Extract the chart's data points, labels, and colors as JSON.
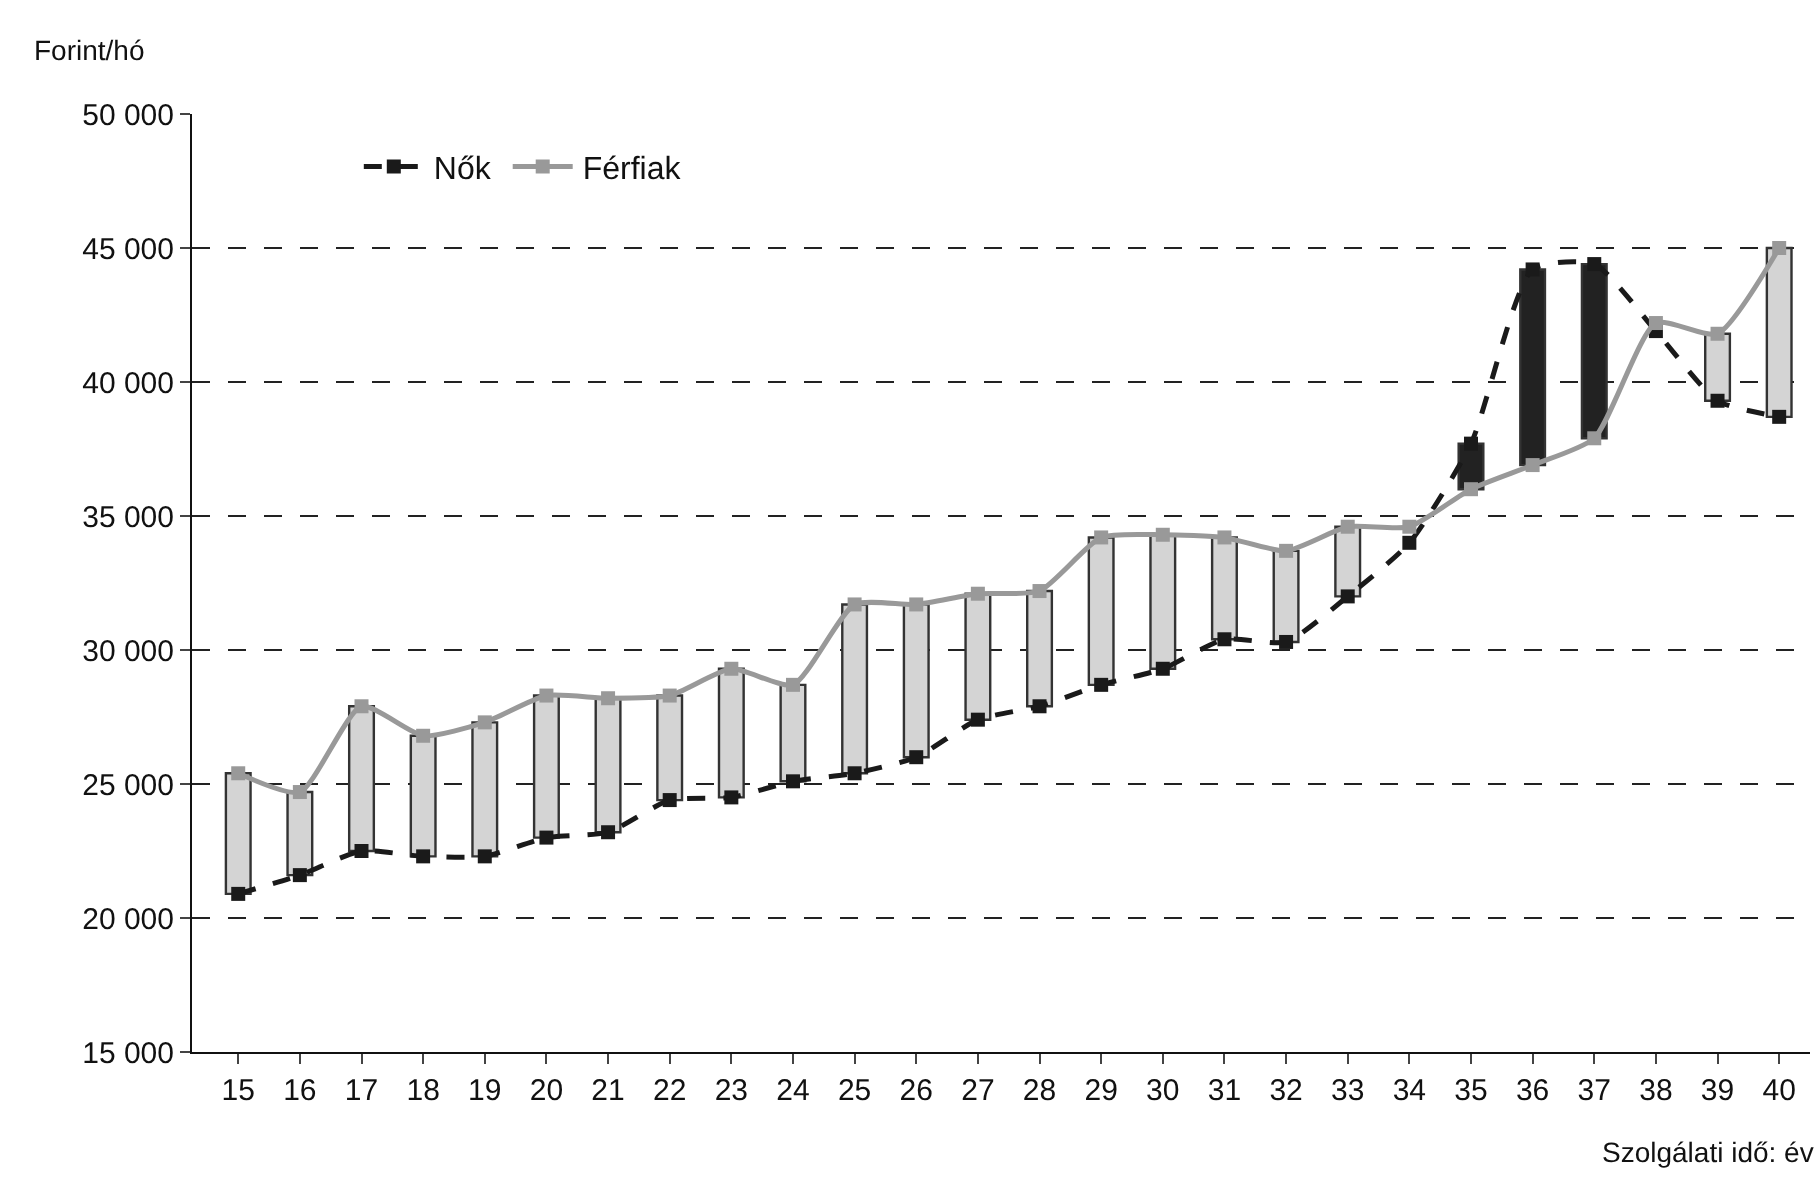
{
  "chart_data": {
    "type": "line",
    "xlabel": "Szolgálati idő: év",
    "ylabel": "Forint/hó",
    "categories": [
      "15",
      "16",
      "17",
      "18",
      "19",
      "20",
      "21",
      "22",
      "23",
      "24",
      "25",
      "26",
      "27",
      "28",
      "29",
      "30",
      "31",
      "32",
      "33",
      "34",
      "35",
      "36",
      "37",
      "38",
      "39",
      "40"
    ],
    "series": [
      {
        "type": "bar",
        "base": [
          20900,
          21600,
          22500,
          22300,
          22300,
          23000,
          23200,
          24400,
          24500,
          25100,
          25400,
          26000,
          27400,
          27900,
          28700,
          29300,
          30400,
          30300,
          32000,
          null,
          36000,
          36900,
          37900,
          null,
          39300,
          38700
        ],
        "values": [
          4500,
          3100,
          5400,
          4500,
          5000,
          5300,
          5000,
          3900,
          4800,
          3600,
          6300,
          5700,
          4700,
          4300,
          5500,
          5000,
          3800,
          3400,
          2600,
          null,
          1700,
          7300,
          6500,
          null,
          2500,
          6300
        ],
        "colors": [
          "#d4d4d4",
          "#d4d4d4",
          "#d4d4d4",
          "#d4d4d4",
          "#d4d4d4",
          "#d4d4d4",
          "#d4d4d4",
          "#d4d4d4",
          "#d4d4d4",
          "#d4d4d4",
          "#d4d4d4",
          "#d4d4d4",
          "#d4d4d4",
          "#d4d4d4",
          "#d4d4d4",
          "#d4d4d4",
          "#d4d4d4",
          "#d4d4d4",
          "#d4d4d4",
          "#d4d4d4",
          "#222222",
          "#222222",
          "#222222",
          "#d4d4d4",
          "#d4d4d4",
          "#d4d4d4"
        ]
      },
      {
        "name": "Nők",
        "color": "#1a1a1a",
        "line_style": "dashed",
        "values": [
          20900,
          21600,
          22500,
          22300,
          22300,
          23000,
          23200,
          24400,
          24500,
          25100,
          25400,
          26000,
          27400,
          27900,
          28700,
          29300,
          30400,
          30300,
          32000,
          34000,
          37700,
          44200,
          44400,
          41900,
          39300,
          38700
        ]
      },
      {
        "name": "Férfiak",
        "color": "#999999",
        "line_style": "solid",
        "values": [
          25400,
          24700,
          27900,
          26800,
          27300,
          28300,
          28200,
          28300,
          29300,
          28700,
          31700,
          31700,
          32100,
          32200,
          34200,
          34300,
          34200,
          33700,
          34600,
          34600,
          36000,
          36900,
          37900,
          42200,
          41800,
          45000
        ]
      }
    ],
    "ylim": [
      15000,
      50000
    ],
    "yticks": [
      {
        "value": 15000,
        "label": "15 000"
      },
      {
        "value": 20000,
        "label": "20 000"
      },
      {
        "value": 25000,
        "label": "25 000"
      },
      {
        "value": 30000,
        "label": "30 000"
      },
      {
        "value": 35000,
        "label": "35 000"
      },
      {
        "value": 40000,
        "label": "40 000"
      },
      {
        "value": 45000,
        "label": "45 000"
      },
      {
        "value": 50000,
        "label": "50 000"
      }
    ],
    "grid": "y",
    "legend": "top left",
    "marker": "square"
  }
}
